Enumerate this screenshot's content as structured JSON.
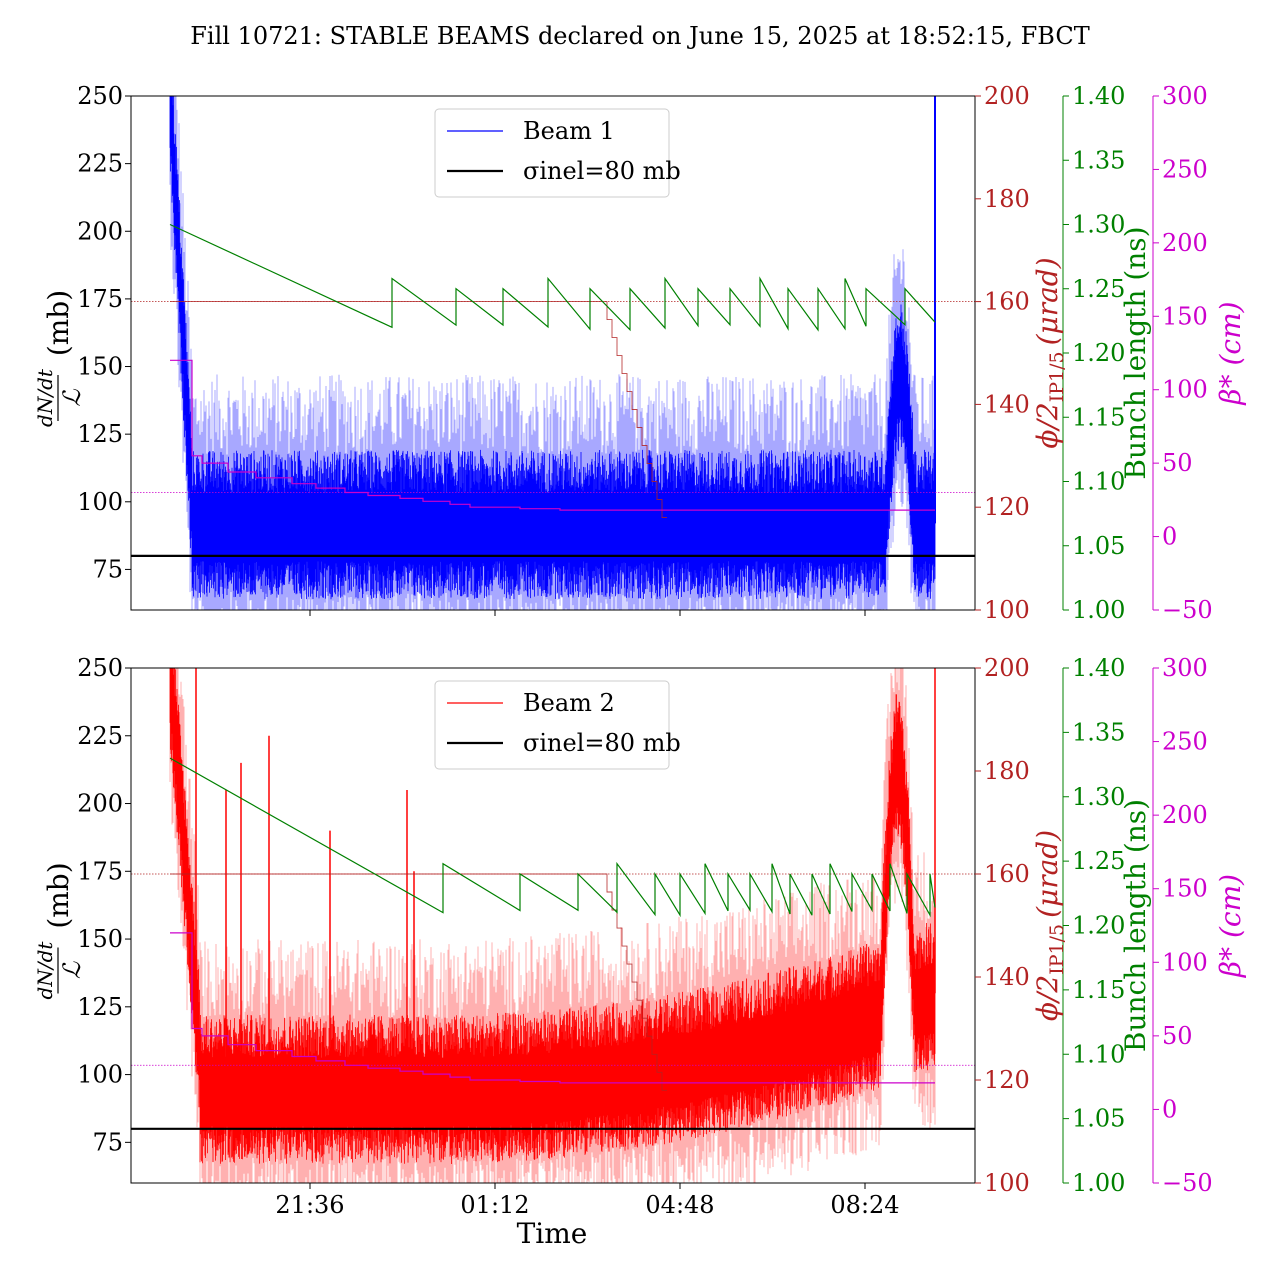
{
  "chart_data": [
    {
      "panel": "top",
      "type": "line",
      "title": "Fill 10721: STABLE BEAMS declared on June 15, 2025 at 18:52:15, FBCT",
      "xlabel": "",
      "ylabel": {
        "num": "dN/dt",
        "den": "ℒ",
        "unit": "(mb)"
      },
      "ylim": [
        60,
        250
      ],
      "yticks": [
        "75",
        "100",
        "125",
        "150",
        "175",
        "200",
        "225",
        "250"
      ],
      "xticks": [],
      "xrange_hours": [
        18.87,
        11.18
      ],
      "legend": {
        "position": "top-center",
        "entries": [
          "Beam 1",
          "σinel=80 mb"
        ]
      },
      "series": [
        {
          "name": "Beam 1",
          "color": "#0000ff",
          "baseline_mb": 92,
          "noise_mb": 14
        },
        {
          "name": "σinel=80 mb",
          "color": "#000000",
          "value_mb": 80
        }
      ],
      "right_axes": [
        {
          "label": "ϕ/2",
          "label_sub": "IP1/5",
          "label_unit": "(μrad)",
          "color": "#b22222",
          "range": [
            100,
            200
          ],
          "ticks": [
            "100",
            "120",
            "140",
            "160",
            "180",
            "200"
          ],
          "level": 160
        },
        {
          "label": "Bunch length (ns)",
          "color": "#008000",
          "range": [
            1.0,
            1.4
          ],
          "ticks": [
            "1.00",
            "1.05",
            "1.10",
            "1.15",
            "1.20",
            "1.25",
            "1.30",
            "1.35",
            "1.40"
          ],
          "start_ns": 1.3,
          "sawtooth_low_ns": 1.22,
          "sawtooth_high_ns": 1.25
        },
        {
          "label": "β* (cm)",
          "color": "#cc00cc",
          "range": [
            -50,
            300
          ],
          "ticks": [
            "−50",
            "0",
            "50",
            "100",
            "150",
            "200",
            "250",
            "300"
          ],
          "start_cm": 120,
          "end_cm": 18,
          "level_cm": 30
        }
      ]
    },
    {
      "panel": "bottom",
      "type": "line",
      "xlabel": "Time",
      "ylabel": {
        "num": "dN/dt",
        "den": "ℒ",
        "unit": "(mb)"
      },
      "ylim": [
        60,
        250
      ],
      "yticks": [
        "75",
        "100",
        "125",
        "150",
        "175",
        "200",
        "225",
        "250"
      ],
      "xticks": [
        "21:36",
        "01:12",
        "04:48",
        "08:24"
      ],
      "legend": {
        "position": "top-center",
        "entries": [
          "Beam 2",
          "σinel=80 mb"
        ]
      },
      "series": [
        {
          "name": "Beam 2",
          "color": "#ff0000",
          "baseline_start_mb": 95,
          "baseline_end_mb": 130,
          "noise_mb": 14
        },
        {
          "name": "σinel=80 mb",
          "color": "#000000",
          "value_mb": 80
        }
      ],
      "right_axes": [
        {
          "label": "ϕ/2",
          "label_sub": "IP1/5",
          "label_unit": "(μrad)",
          "color": "#b22222",
          "range": [
            100,
            200
          ],
          "ticks": [
            "100",
            "120",
            "140",
            "160",
            "180",
            "200"
          ],
          "level": 160
        },
        {
          "label": "Bunch length (ns)",
          "color": "#008000",
          "range": [
            1.0,
            1.4
          ],
          "ticks": [
            "1.00",
            "1.05",
            "1.10",
            "1.15",
            "1.20",
            "1.25",
            "1.30",
            "1.35",
            "1.40"
          ],
          "start_ns": 1.33,
          "sawtooth_low_ns": 1.21,
          "sawtooth_high_ns": 1.24
        },
        {
          "label": "β* (cm)",
          "color": "#cc00cc",
          "range": [
            -50,
            300
          ],
          "ticks": [
            "−50",
            "0",
            "50",
            "100",
            "150",
            "200",
            "250",
            "300"
          ],
          "start_cm": 120,
          "end_cm": 18,
          "level_cm": 30
        }
      ]
    }
  ]
}
